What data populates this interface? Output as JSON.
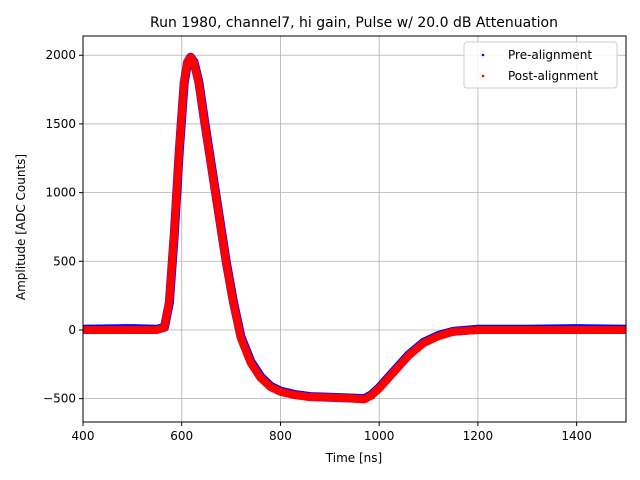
{
  "chart_data": {
    "type": "scatter",
    "title": "Run 1980, channel7, hi gain, Pulse w/ 20.0 dB Attenuation",
    "xlabel": "Time [ns]",
    "ylabel": "Amplitude [ADC Counts]",
    "xlim": [
      400,
      1500
    ],
    "ylim": [
      -670,
      2140
    ],
    "xticks": [
      400,
      600,
      800,
      1000,
      1200,
      1400
    ],
    "yticks": [
      -500,
      0,
      500,
      1000,
      1500,
      2000
    ],
    "grid": true,
    "legend_position": "top-right",
    "series": [
      {
        "name": "Pre-alignment",
        "color": "#0000ff",
        "points": [
          [
            400,
            5
          ],
          [
            450,
            8
          ],
          [
            500,
            10
          ],
          [
            550,
            5
          ],
          [
            565,
            20
          ],
          [
            575,
            200
          ],
          [
            585,
            700
          ],
          [
            595,
            1300
          ],
          [
            605,
            1800
          ],
          [
            612,
            1950
          ],
          [
            618,
            1985
          ],
          [
            625,
            1950
          ],
          [
            635,
            1800
          ],
          [
            645,
            1550
          ],
          [
            660,
            1200
          ],
          [
            675,
            850
          ],
          [
            690,
            500
          ],
          [
            705,
            200
          ],
          [
            720,
            -50
          ],
          [
            740,
            -230
          ],
          [
            760,
            -340
          ],
          [
            780,
            -410
          ],
          [
            800,
            -445
          ],
          [
            830,
            -470
          ],
          [
            860,
            -485
          ],
          [
            900,
            -490
          ],
          [
            940,
            -495
          ],
          [
            970,
            -500
          ],
          [
            985,
            -470
          ],
          [
            1000,
            -420
          ],
          [
            1030,
            -300
          ],
          [
            1060,
            -180
          ],
          [
            1090,
            -90
          ],
          [
            1120,
            -40
          ],
          [
            1150,
            -10
          ],
          [
            1200,
            5
          ],
          [
            1300,
            5
          ],
          [
            1400,
            10
          ],
          [
            1500,
            5
          ]
        ]
      },
      {
        "name": "Post-alignment",
        "color": "#ff0000",
        "points": [
          [
            400,
            0
          ],
          [
            450,
            0
          ],
          [
            500,
            0
          ],
          [
            550,
            0
          ],
          [
            565,
            20
          ],
          [
            575,
            220
          ],
          [
            585,
            720
          ],
          [
            595,
            1320
          ],
          [
            605,
            1810
          ],
          [
            612,
            1955
          ],
          [
            618,
            1985
          ],
          [
            625,
            1945
          ],
          [
            635,
            1790
          ],
          [
            645,
            1540
          ],
          [
            660,
            1190
          ],
          [
            675,
            840
          ],
          [
            690,
            490
          ],
          [
            705,
            190
          ],
          [
            720,
            -60
          ],
          [
            740,
            -240
          ],
          [
            760,
            -350
          ],
          [
            780,
            -415
          ],
          [
            800,
            -450
          ],
          [
            830,
            -475
          ],
          [
            860,
            -488
          ],
          [
            900,
            -492
          ],
          [
            940,
            -497
          ],
          [
            970,
            -505
          ],
          [
            985,
            -475
          ],
          [
            1000,
            -425
          ],
          [
            1030,
            -305
          ],
          [
            1060,
            -185
          ],
          [
            1090,
            -95
          ],
          [
            1120,
            -45
          ],
          [
            1150,
            -12
          ],
          [
            1200,
            0
          ],
          [
            1300,
            0
          ],
          [
            1400,
            0
          ],
          [
            1500,
            0
          ]
        ]
      }
    ]
  }
}
